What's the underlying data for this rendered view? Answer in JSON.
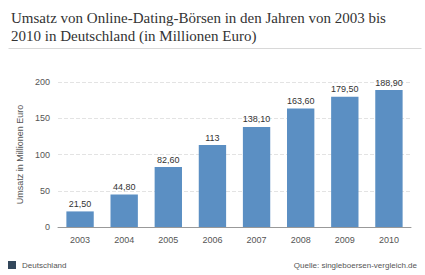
{
  "chart_data": {
    "type": "bar",
    "title": "Umsatz von Online-Dating-Börsen in den Jahren von 2003 bis 2010 in Deutschland (in Millionen Euro)",
    "y_label": "Umsatz in Millionen Euro",
    "categories": [
      "2003",
      "2004",
      "2005",
      "2006",
      "2007",
      "2008",
      "2009",
      "2010"
    ],
    "values": [
      21.5,
      44.8,
      82.6,
      113,
      138.1,
      163.6,
      179.5,
      188.9
    ],
    "value_labels": [
      "21,50",
      "44,80",
      "82,60",
      "113",
      "138,10",
      "163,60",
      "179,50",
      "188,90"
    ],
    "color": "#5b8fc3",
    "ylim": [
      0,
      200
    ],
    "yticks": [
      0,
      50,
      100,
      150,
      200
    ],
    "grid": true,
    "data_labels": true,
    "annotations": [
      "Deutschland",
      "Quelle: singleboersen-vergleich.de"
    ]
  }
}
